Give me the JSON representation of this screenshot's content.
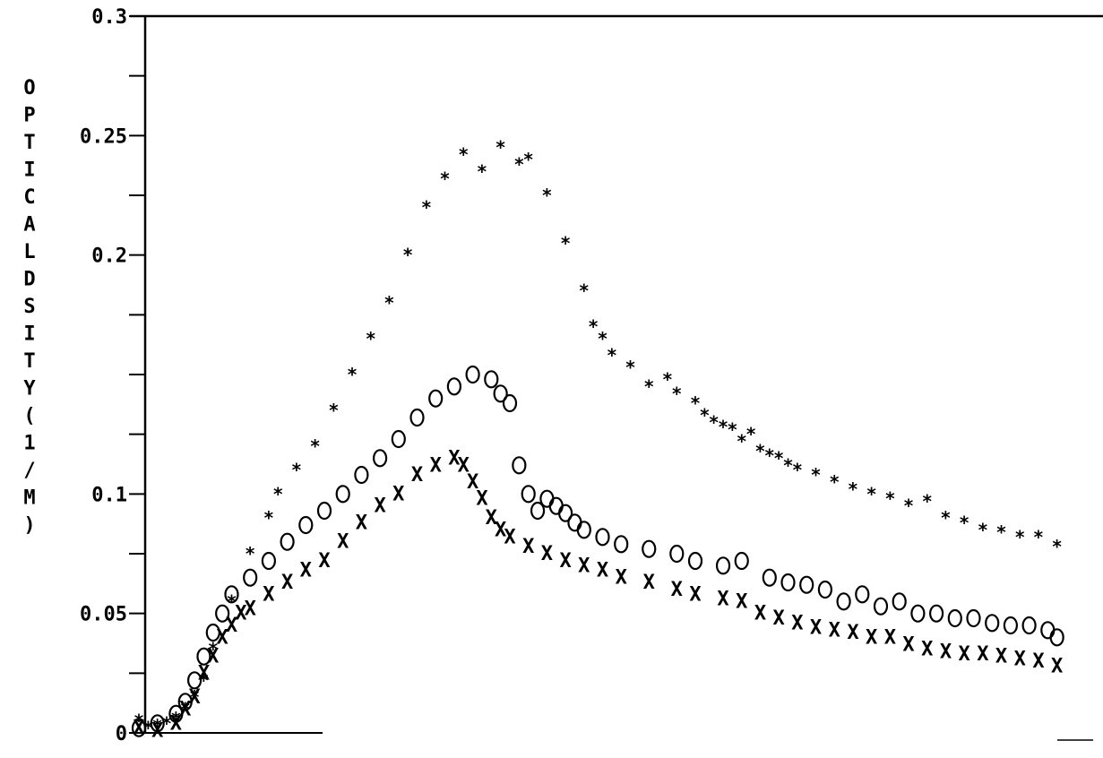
{
  "chart_data": {
    "type": "scatter",
    "title": "",
    "xlabel": "",
    "ylabel": "OPTICAL DSITY (1/M)",
    "ylim": [
      0,
      0.3
    ],
    "xlim": [
      0,
      100
    ],
    "y_ticks": [
      0,
      0.05,
      0.1,
      0.2,
      0.25,
      0.3
    ],
    "y_tick_labels": [
      "0",
      "0.05",
      "0.1",
      "0.2",
      "0.25",
      "0.3"
    ],
    "grid": false,
    "legend": "none",
    "series": [
      {
        "marker": "asterisk",
        "x": [
          0,
          1,
          2,
          3,
          4,
          5,
          6,
          7,
          8,
          10,
          12,
          14,
          15,
          17,
          19,
          21,
          23,
          25,
          27,
          29,
          31,
          33,
          35,
          37,
          39,
          41,
          42,
          44,
          46,
          48,
          49,
          50,
          51,
          53,
          55,
          57,
          58,
          60,
          61,
          62,
          63,
          64,
          65,
          66,
          67,
          68,
          69,
          70,
          71,
          73,
          75,
          77,
          79,
          81,
          83,
          85,
          87,
          89,
          91,
          93,
          95,
          97,
          99
        ],
        "y": [
          0.005,
          0.002,
          0.003,
          0.004,
          0.006,
          0.01,
          0.015,
          0.022,
          0.035,
          0.055,
          0.075,
          0.09,
          0.1,
          0.11,
          0.12,
          0.135,
          0.15,
          0.165,
          0.18,
          0.2,
          0.22,
          0.232,
          0.242,
          0.235,
          0.245,
          0.238,
          0.24,
          0.225,
          0.205,
          0.185,
          0.17,
          0.165,
          0.158,
          0.153,
          0.145,
          0.148,
          0.142,
          0.138,
          0.133,
          0.13,
          0.128,
          0.127,
          0.122,
          0.125,
          0.118,
          0.116,
          0.115,
          0.112,
          0.11,
          0.108,
          0.105,
          0.102,
          0.1,
          0.098,
          0.095,
          0.097,
          0.09,
          0.088,
          0.085,
          0.084,
          0.082,
          0.082,
          0.078
        ]
      },
      {
        "marker": "circle",
        "x": [
          0,
          2,
          4,
          5,
          6,
          7,
          8,
          9,
          10,
          12,
          14,
          16,
          18,
          20,
          22,
          24,
          26,
          28,
          30,
          32,
          34,
          36,
          38,
          39,
          40,
          41,
          42,
          43,
          44,
          45,
          46,
          47,
          48,
          50,
          52,
          55,
          58,
          60,
          63,
          65,
          68,
          70,
          72,
          74,
          76,
          78,
          80,
          82,
          84,
          86,
          88,
          90,
          92,
          94,
          96,
          98,
          99
        ],
        "y": [
          0.002,
          0.004,
          0.008,
          0.013,
          0.022,
          0.032,
          0.042,
          0.05,
          0.058,
          0.065,
          0.072,
          0.08,
          0.087,
          0.093,
          0.1,
          0.108,
          0.115,
          0.123,
          0.132,
          0.14,
          0.145,
          0.15,
          0.148,
          0.142,
          0.138,
          0.112,
          0.1,
          0.093,
          0.098,
          0.095,
          0.092,
          0.088,
          0.085,
          0.082,
          0.079,
          0.077,
          0.075,
          0.072,
          0.07,
          0.072,
          0.065,
          0.063,
          0.062,
          0.06,
          0.055,
          0.058,
          0.053,
          0.055,
          0.05,
          0.05,
          0.048,
          0.048,
          0.046,
          0.045,
          0.045,
          0.043,
          0.04
        ]
      },
      {
        "marker": "x",
        "x": [
          0,
          2,
          4,
          5,
          6,
          7,
          8,
          9,
          10,
          11,
          12,
          14,
          16,
          18,
          20,
          22,
          24,
          26,
          28,
          30,
          32,
          34,
          35,
          36,
          37,
          38,
          39,
          40,
          42,
          44,
          46,
          48,
          50,
          52,
          55,
          58,
          60,
          63,
          65,
          67,
          69,
          71,
          73,
          75,
          77,
          79,
          81,
          83,
          85,
          87,
          89,
          91,
          93,
          95,
          97,
          99
        ],
        "y": [
          0.002,
          0.001,
          0.004,
          0.01,
          0.015,
          0.025,
          0.032,
          0.04,
          0.045,
          0.05,
          0.052,
          0.058,
          0.063,
          0.068,
          0.072,
          0.08,
          0.088,
          0.095,
          0.1,
          0.108,
          0.112,
          0.115,
          0.112,
          0.105,
          0.098,
          0.09,
          0.085,
          0.082,
          0.078,
          0.075,
          0.072,
          0.07,
          0.068,
          0.065,
          0.063,
          0.06,
          0.058,
          0.056,
          0.055,
          0.05,
          0.048,
          0.046,
          0.044,
          0.043,
          0.042,
          0.04,
          0.04,
          0.037,
          0.035,
          0.034,
          0.033,
          0.033,
          0.032,
          0.031,
          0.03,
          0.028
        ]
      }
    ],
    "colors": {
      "ink": "#000000",
      "background": "#ffffff"
    }
  }
}
